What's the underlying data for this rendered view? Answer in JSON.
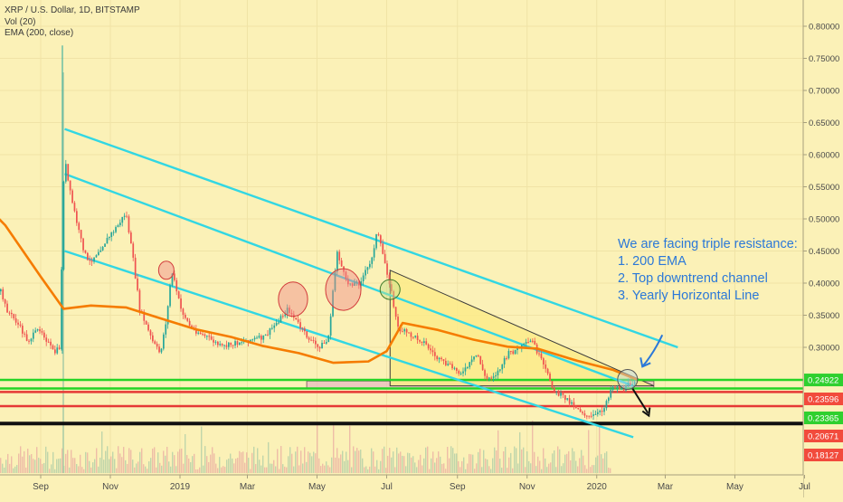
{
  "legend": {
    "symbol": "XRP / U.S. Dollar, 1D, BITSTAMP",
    "volume": "Vol (20)",
    "ema": "EMA (200, close)"
  },
  "chart_data": {
    "type": "candlestick",
    "symbol": "XRP / U.S. Dollar",
    "interval": "1D",
    "exchange": "BITSTAMP",
    "y_axis_ticks": [
      0.8,
      0.75,
      0.7,
      0.65,
      0.6,
      0.55,
      0.5,
      0.45,
      0.4,
      0.35,
      0.3
    ],
    "x_axis_ticks": [
      "Sep",
      "Nov",
      "2019",
      "Mar",
      "May",
      "Jul",
      "Sep",
      "Nov",
      "2020",
      "Mar",
      "May",
      "Jul"
    ],
    "price_labels": [
      {
        "value": "0.24922",
        "color": "#2fd02f"
      },
      {
        "value": "0.23596",
        "color": "#f24b3c"
      },
      {
        "value": "0.23365",
        "color": "#2fd02f"
      },
      {
        "value": "0.20671",
        "color": "#f24b3c"
      },
      {
        "value": "0.18127",
        "color": "#f24b3c"
      }
    ],
    "horizontal_lines": [
      {
        "value": 0.24922,
        "color": "#25d425"
      },
      {
        "value": 0.23596,
        "color": "#25d425"
      },
      {
        "value": 0.2305,
        "color": "#e53935"
      },
      {
        "value": 0.2085,
        "color": "#e53935"
      },
      {
        "value": 0.18127,
        "color": "#111111"
      }
    ],
    "price_path": [
      [
        "2018-07-10",
        0.445
      ],
      [
        "2018-07-20",
        0.43
      ],
      [
        "2018-08-01",
        0.36
      ],
      [
        "2018-08-10",
        0.34
      ],
      [
        "2018-08-20",
        0.31
      ],
      [
        "2018-08-31",
        0.33
      ],
      [
        "2018-09-12",
        0.29
      ],
      [
        "2018-09-17",
        0.3
      ],
      [
        "2018-09-21",
        0.6
      ],
      [
        "2018-09-25",
        0.55
      ],
      [
        "2018-10-05",
        0.47
      ],
      [
        "2018-10-12",
        0.43
      ],
      [
        "2018-10-25",
        0.46
      ],
      [
        "2018-11-07",
        0.49
      ],
      [
        "2018-11-14",
        0.51
      ],
      [
        "2018-11-20",
        0.44
      ],
      [
        "2018-11-26",
        0.36
      ],
      [
        "2018-12-07",
        0.31
      ],
      [
        "2018-12-14",
        0.29
      ],
      [
        "2018-12-20",
        0.35
      ],
      [
        "2018-12-24",
        0.42
      ],
      [
        "2019-01-01",
        0.36
      ],
      [
        "2019-01-10",
        0.33
      ],
      [
        "2019-01-25",
        0.315
      ],
      [
        "2019-02-06",
        0.3
      ],
      [
        "2019-02-24",
        0.31
      ],
      [
        "2019-03-15",
        0.315
      ],
      [
        "2019-04-05",
        0.36
      ],
      [
        "2019-04-20",
        0.32
      ],
      [
        "2019-05-01",
        0.3
      ],
      [
        "2019-05-10",
        0.31
      ],
      [
        "2019-05-14",
        0.38
      ],
      [
        "2019-05-18",
        0.45
      ],
      [
        "2019-05-26",
        0.4
      ],
      [
        "2019-06-06",
        0.4
      ],
      [
        "2019-06-16",
        0.43
      ],
      [
        "2019-06-22",
        0.48
      ],
      [
        "2019-06-29",
        0.43
      ],
      [
        "2019-07-03",
        0.4
      ],
      [
        "2019-07-10",
        0.33
      ],
      [
        "2019-07-20",
        0.32
      ],
      [
        "2019-08-01",
        0.31
      ],
      [
        "2019-08-15",
        0.28
      ],
      [
        "2019-08-25",
        0.27
      ],
      [
        "2019-09-05",
        0.26
      ],
      [
        "2019-09-18",
        0.29
      ],
      [
        "2019-09-25",
        0.25
      ],
      [
        "2019-10-05",
        0.26
      ],
      [
        "2019-10-15",
        0.29
      ],
      [
        "2019-10-26",
        0.3
      ],
      [
        "2019-11-05",
        0.31
      ],
      [
        "2019-11-15",
        0.27
      ],
      [
        "2019-11-25",
        0.23
      ],
      [
        "2019-12-05",
        0.22
      ],
      [
        "2019-12-15",
        0.205
      ],
      [
        "2019-12-25",
        0.19
      ],
      [
        "2020-01-05",
        0.2
      ],
      [
        "2020-01-14",
        0.24
      ],
      [
        "2020-01-24",
        0.235
      ],
      [
        "2020-02-03",
        0.25
      ]
    ],
    "ema_path": [
      [
        "2018-07-10",
        0.53
      ],
      [
        "2018-08-01",
        0.49
      ],
      [
        "2018-09-01",
        0.41
      ],
      [
        "2018-09-21",
        0.36
      ],
      [
        "2018-10-15",
        0.365
      ],
      [
        "2018-11-15",
        0.362
      ],
      [
        "2018-12-15",
        0.345
      ],
      [
        "2019-01-15",
        0.328
      ],
      [
        "2019-02-15",
        0.316
      ],
      [
        "2019-03-15",
        0.302
      ],
      [
        "2019-04-15",
        0.291
      ],
      [
        "2019-05-15",
        0.276
      ],
      [
        "2019-06-15",
        0.278
      ],
      [
        "2019-07-01",
        0.294
      ],
      [
        "2019-07-15",
        0.338
      ],
      [
        "2019-08-15",
        0.327
      ],
      [
        "2019-09-15",
        0.312
      ],
      [
        "2019-10-15",
        0.301
      ],
      [
        "2019-11-10",
        0.298
      ],
      [
        "2019-12-15",
        0.279
      ],
      [
        "2020-01-15",
        0.265
      ],
      [
        "2020-02-05",
        0.25
      ]
    ],
    "channel_lines": [
      {
        "from": [
          "2018-09-22",
          0.64
        ],
        "to": [
          "2020-03-12",
          0.3
        ],
        "color": "#32d7e3"
      },
      {
        "from": [
          "2018-09-22",
          0.57
        ],
        "to": [
          "2020-02-02",
          0.24
        ],
        "color": "#32d7e3"
      },
      {
        "from": [
          "2018-09-22",
          0.45
        ],
        "to": [
          "2020-02-02",
          0.16
        ],
        "color": "#32d7e3"
      }
    ],
    "triangle": {
      "points": [
        [
          "2019-07-04",
          0.42
        ],
        [
          "2020-02-20",
          0.24
        ],
        [
          "2019-07-04",
          0.24
        ]
      ],
      "fill": "#fbeb8a"
    },
    "resistance_band": {
      "from": "2019-04-22",
      "to": "2020-02-20",
      "low": 0.2355,
      "high": 0.2475
    },
    "circles": [
      {
        "center": [
          "2018-12-20",
          0.42
        ],
        "type": "red"
      },
      {
        "center": [
          "2019-04-10",
          0.375
        ],
        "type": "red"
      },
      {
        "center": [
          "2019-05-24",
          0.39
        ],
        "type": "red"
      },
      {
        "center": [
          "2019-07-04",
          0.39
        ],
        "type": "green"
      },
      {
        "center": [
          "2020-01-28",
          0.25
        ],
        "type": "grey"
      }
    ],
    "annotation": {
      "lines": [
        "We are facing triple resistance:",
        "1. 200 EMA",
        "2. Top downtrend channel",
        "3. Yearly Horizontal Line"
      ],
      "color": "#2b78d8"
    },
    "colors": {
      "background": "#fbf1b7",
      "up_candle": "#26a69a",
      "down_candle": "#ef5350",
      "ema": "#f57c00",
      "channel": "#32d7e3"
    }
  }
}
